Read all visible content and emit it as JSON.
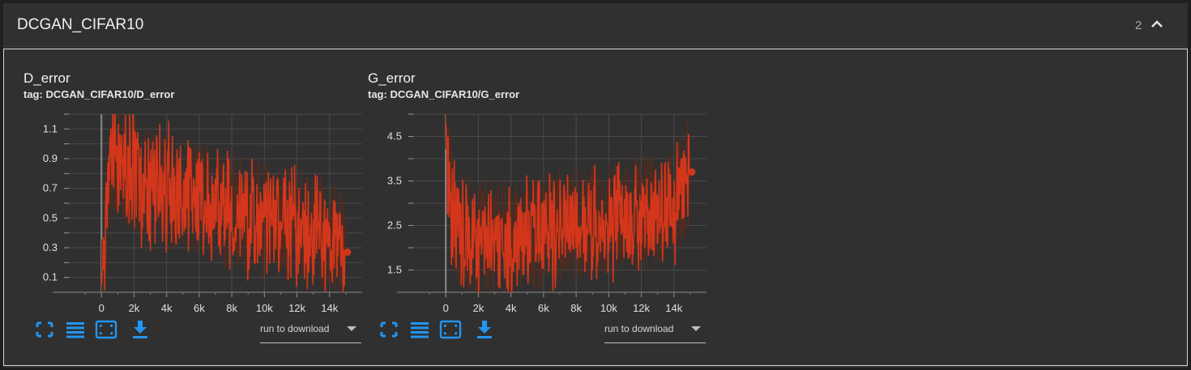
{
  "header": {
    "title": "DCGAN_CIFAR10",
    "count": "2"
  },
  "charts": [
    {
      "title": "D_error",
      "tag": "tag: DCGAN_CIFAR10/D_error",
      "download_label": "run to download"
    },
    {
      "title": "G_error",
      "tag": "tag: DCGAN_CIFAR10/G_error",
      "download_label": "run to download"
    }
  ],
  "colors": {
    "series": "#d4361b",
    "series_shadow": "#5a2a1c",
    "accent": "#2196f3",
    "grid": "#4a4a4a"
  },
  "icons": [
    "fullscreen-icon",
    "data-table-icon",
    "fit-domain-icon",
    "download-icon",
    "chevron-up-icon"
  ],
  "chart_data": [
    {
      "type": "line",
      "title": "D_error",
      "x_ticks": [
        "0",
        "2k",
        "4k",
        "6k",
        "8k",
        "10k",
        "12k",
        "14k"
      ],
      "y_ticks": [
        "0.1",
        "0.3",
        "0.5",
        "0.7",
        "0.9",
        "1.1"
      ],
      "xlim": [
        -2000,
        16000
      ],
      "ylim": [
        0.0,
        1.2
      ],
      "grid": true,
      "series": [
        {
          "x": [
            0,
            500,
            1000,
            1500,
            2000,
            3000,
            4000,
            5000,
            6000,
            7000,
            8000,
            9000,
            10000,
            11000,
            12000,
            13000,
            14000,
            15000
          ],
          "values": [
            0.05,
            0.9,
            0.88,
            0.82,
            0.78,
            0.72,
            0.7,
            0.66,
            0.62,
            0.58,
            0.55,
            0.5,
            0.48,
            0.46,
            0.44,
            0.42,
            0.4,
            0.27
          ]
        }
      ]
    },
    {
      "type": "line",
      "title": "G_error",
      "x_ticks": [
        "0",
        "2k",
        "4k",
        "6k",
        "8k",
        "10k",
        "12k",
        "14k"
      ],
      "y_ticks": [
        "1.5",
        "2.5",
        "3.5",
        "4.5"
      ],
      "xlim": [
        -2000,
        16000
      ],
      "ylim": [
        1.0,
        5.0
      ],
      "grid": true,
      "series": [
        {
          "x": [
            0,
            200,
            500,
            1000,
            2000,
            3000,
            4000,
            5000,
            6000,
            7000,
            8000,
            9000,
            10000,
            11000,
            12000,
            13000,
            14000,
            15000
          ],
          "values": [
            4.8,
            3.6,
            2.6,
            2.4,
            2.3,
            2.2,
            2.2,
            2.3,
            2.4,
            2.5,
            2.6,
            2.6,
            2.7,
            2.7,
            2.8,
            2.8,
            2.9,
            3.7
          ]
        }
      ]
    }
  ]
}
